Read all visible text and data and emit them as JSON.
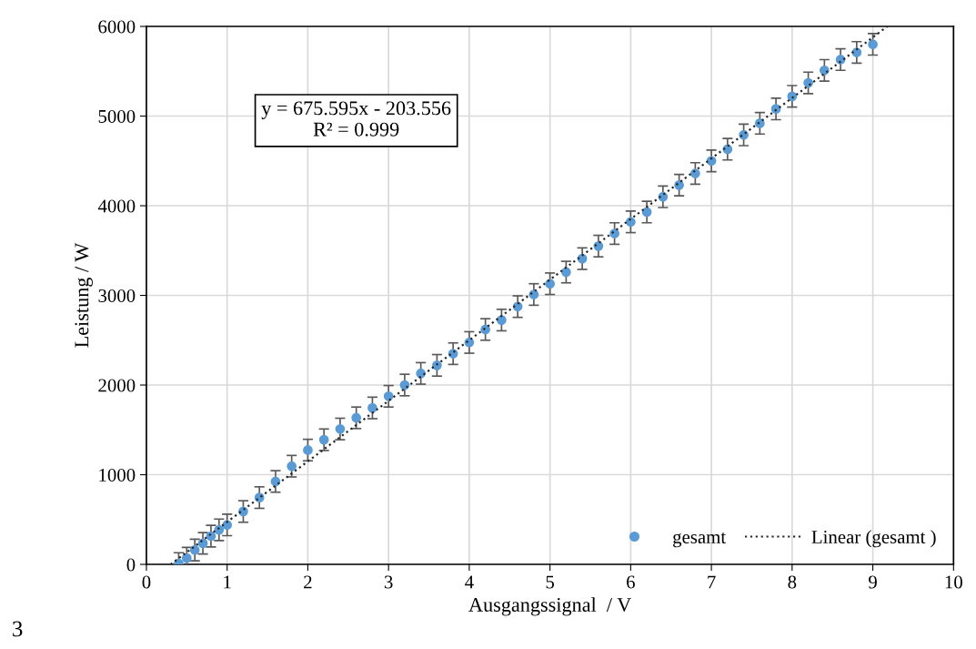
{
  "chart_data": {
    "type": "scatter",
    "xlabel": "Ausgangssignal  / V",
    "ylabel": "Leistung / W",
    "xlim": [
      0,
      10
    ],
    "xticks": [
      0,
      1,
      2,
      3,
      4,
      5,
      6,
      7,
      8,
      9,
      10
    ],
    "ylim": [
      0,
      6000
    ],
    "yticks": [
      0,
      1000,
      2000,
      3000,
      4000,
      5000,
      6000
    ],
    "grid": true,
    "legend": "bottom right",
    "marker": "circle",
    "series": [
      {
        "name": "gesamt",
        "color": "#5b9bd5",
        "x": [
          0.4,
          0.5,
          0.6,
          0.7,
          0.8,
          0.9,
          1.0,
          1.2,
          1.4,
          1.6,
          1.8,
          2.0,
          2.2,
          2.4,
          2.6,
          2.8,
          3.0,
          3.2,
          3.4,
          3.6,
          3.8,
          4.0,
          4.2,
          4.4,
          4.6,
          4.8,
          5.0,
          5.2,
          5.4,
          5.6,
          5.8,
          6.0,
          6.2,
          6.4,
          6.6,
          6.8,
          7.0,
          7.2,
          7.4,
          7.6,
          7.8,
          8.0,
          8.2,
          8.4,
          8.6,
          8.8,
          9.0
        ],
        "values": [
          10,
          70,
          160,
          235,
          315,
          385,
          440,
          590,
          745,
          925,
          1095,
          1275,
          1390,
          1510,
          1635,
          1745,
          1875,
          2000,
          2130,
          2220,
          2350,
          2475,
          2620,
          2725,
          2875,
          3010,
          3130,
          3260,
          3410,
          3550,
          3690,
          3820,
          3930,
          4100,
          4230,
          4360,
          4500,
          4630,
          4790,
          4920,
          5080,
          5220,
          5370,
          5510,
          5630,
          5710,
          5800
        ],
        "errors": [
          120,
          120,
          120,
          120,
          120,
          120,
          120,
          120,
          120,
          120,
          120,
          120,
          120,
          120,
          120,
          120,
          120,
          120,
          120,
          120,
          120,
          120,
          120,
          120,
          120,
          120,
          120,
          120,
          120,
          120,
          120,
          120,
          120,
          120,
          120,
          120,
          120,
          120,
          120,
          120,
          120,
          120,
          120,
          120,
          120,
          120,
          120
        ]
      },
      {
        "name": "Linear (gesamt )",
        "color": "#262626",
        "type": "line",
        "line_style": "dotted",
        "marker": "none",
        "x": [
          0.3,
          9.18
        ],
        "values": [
          0,
          6000
        ]
      }
    ],
    "annotations": [
      "y = 675.595x - 203.556\nR² = 0.999",
      "3"
    ]
  }
}
